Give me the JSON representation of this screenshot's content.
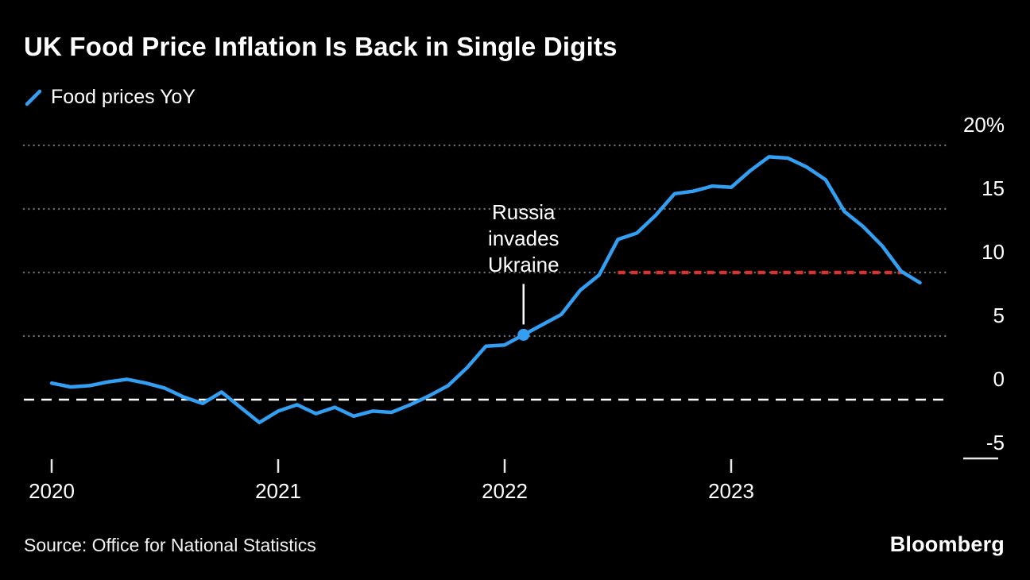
{
  "header": {
    "title": "UK Food Price Inflation Is Back in Single Digits",
    "legend": {
      "label": "Food prices YoY"
    }
  },
  "footer": {
    "source": "Source: Office for National Statistics",
    "logo": "Bloomberg"
  },
  "chart_data": {
    "type": "line",
    "title": "UK Food Price Inflation Is Back in Single Digits",
    "xlabel": "",
    "ylabel": "Food prices YoY (%)",
    "x_tick_labels": [
      "2020",
      "2021",
      "2022",
      "2023"
    ],
    "y_tick_labels": [
      "20%",
      "15",
      "10",
      "5",
      "0",
      "-5"
    ],
    "y_tick_values": [
      20,
      15,
      10,
      5,
      0,
      -5
    ],
    "ylim": [
      -6.5,
      21
    ],
    "grid": "dotted-horizontal",
    "legend_position": "top-left",
    "series": [
      {
        "name": "Food prices YoY",
        "color": "#339FF3",
        "start": "2020-01",
        "frequency": "monthly",
        "values": [
          1.3,
          1.0,
          1.1,
          1.4,
          1.6,
          1.3,
          0.9,
          0.2,
          -0.3,
          0.6,
          -0.6,
          -1.8,
          -0.9,
          -0.4,
          -1.1,
          -0.6,
          -1.3,
          -0.9,
          -1.0,
          -0.4,
          0.3,
          1.1,
          2.5,
          4.2,
          4.3,
          5.1,
          5.9,
          6.7,
          8.6,
          9.8,
          12.6,
          13.1,
          14.5,
          16.2,
          16.4,
          16.8,
          16.7,
          18.0,
          19.1,
          19.0,
          18.3,
          17.3,
          14.8,
          13.6,
          12.1,
          10.1,
          9.2
        ]
      }
    ],
    "zero_line": {
      "value": 0,
      "style": "dashed",
      "color": "#FFFFFF"
    },
    "threshold_line": {
      "value": 10,
      "from": "2022-07",
      "to": "2023-10",
      "style": "dotted",
      "color": "#D8352A"
    },
    "annotation": {
      "text": "Russia\ninvades\nUkraine",
      "point_month": "2022-02",
      "point_value": 5.1
    }
  }
}
